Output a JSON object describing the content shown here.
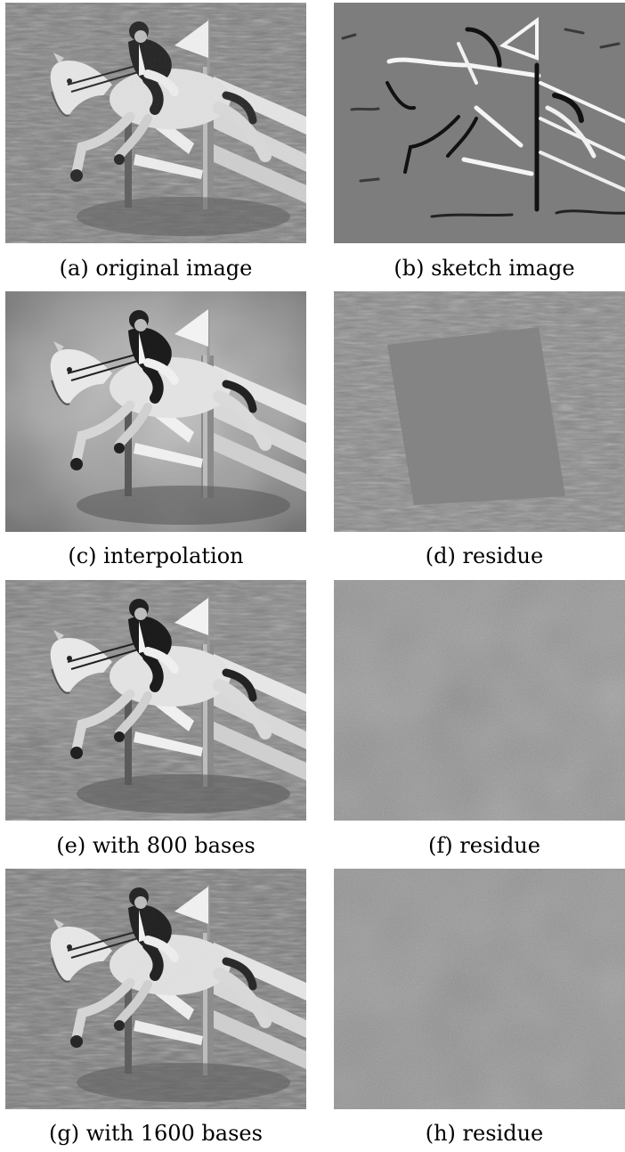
{
  "figure": {
    "panels": [
      {
        "id": "a",
        "caption": "(a) original image",
        "kind": "photo"
      },
      {
        "id": "b",
        "caption": "(b) sketch image",
        "kind": "sketch"
      },
      {
        "id": "c",
        "caption": "(c) interpolation",
        "kind": "smooth"
      },
      {
        "id": "d",
        "caption": "(d) residue",
        "kind": "texture-residue"
      },
      {
        "id": "e",
        "caption": "(e) with 800 bases",
        "kind": "photo"
      },
      {
        "id": "f",
        "caption": "(f) residue",
        "kind": "noise"
      },
      {
        "id": "g",
        "caption": "(g) with 1600 bases",
        "kind": "photo"
      },
      {
        "id": "h",
        "caption": "(h) residue",
        "kind": "noise"
      }
    ]
  }
}
